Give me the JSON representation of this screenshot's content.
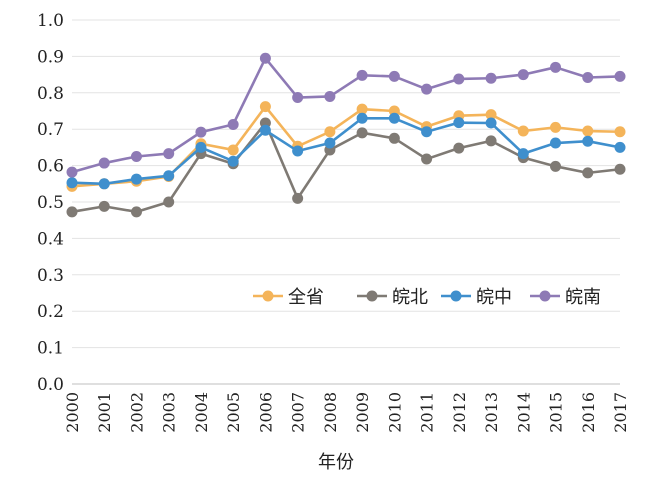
{
  "chart_data": {
    "type": "line",
    "title": "",
    "xlabel": "年份",
    "ylabel": "",
    "categories": [
      "2000",
      "2001",
      "2002",
      "2003",
      "2004",
      "2005",
      "2006",
      "2007",
      "2008",
      "2009",
      "2010",
      "2011",
      "2012",
      "2013",
      "2014",
      "2015",
      "2016",
      "2017"
    ],
    "ylim": [
      0.0,
      1.0
    ],
    "yticks": [
      "0.0",
      "0.1",
      "0.2",
      "0.3",
      "0.4",
      "0.5",
      "0.6",
      "0.7",
      "0.8",
      "0.9",
      "1.0"
    ],
    "grid": true,
    "legend_position": "middle-right",
    "series": [
      {
        "name": "全省",
        "color": "#F4B45A",
        "values": [
          0.543,
          0.55,
          0.557,
          0.57,
          0.66,
          0.643,
          0.762,
          0.653,
          0.693,
          0.755,
          0.75,
          0.707,
          0.737,
          0.74,
          0.695,
          0.705,
          0.695,
          0.693
        ]
      },
      {
        "name": "皖北",
        "color": "#7F7A74",
        "values": [
          0.473,
          0.488,
          0.473,
          0.5,
          0.633,
          0.605,
          0.717,
          0.51,
          0.643,
          0.69,
          0.675,
          0.618,
          0.648,
          0.668,
          0.622,
          0.598,
          0.58,
          0.59
        ]
      },
      {
        "name": "皖中",
        "color": "#3F8FCD",
        "values": [
          0.553,
          0.55,
          0.563,
          0.572,
          0.65,
          0.612,
          0.697,
          0.64,
          0.662,
          0.73,
          0.73,
          0.693,
          0.718,
          0.717,
          0.633,
          0.662,
          0.667,
          0.65
        ]
      },
      {
        "name": "皖南",
        "color": "#8E7AB5",
        "values": [
          0.582,
          0.607,
          0.625,
          0.633,
          0.692,
          0.713,
          0.895,
          0.787,
          0.79,
          0.848,
          0.845,
          0.81,
          0.838,
          0.84,
          0.85,
          0.87,
          0.842,
          0.845
        ]
      }
    ]
  }
}
